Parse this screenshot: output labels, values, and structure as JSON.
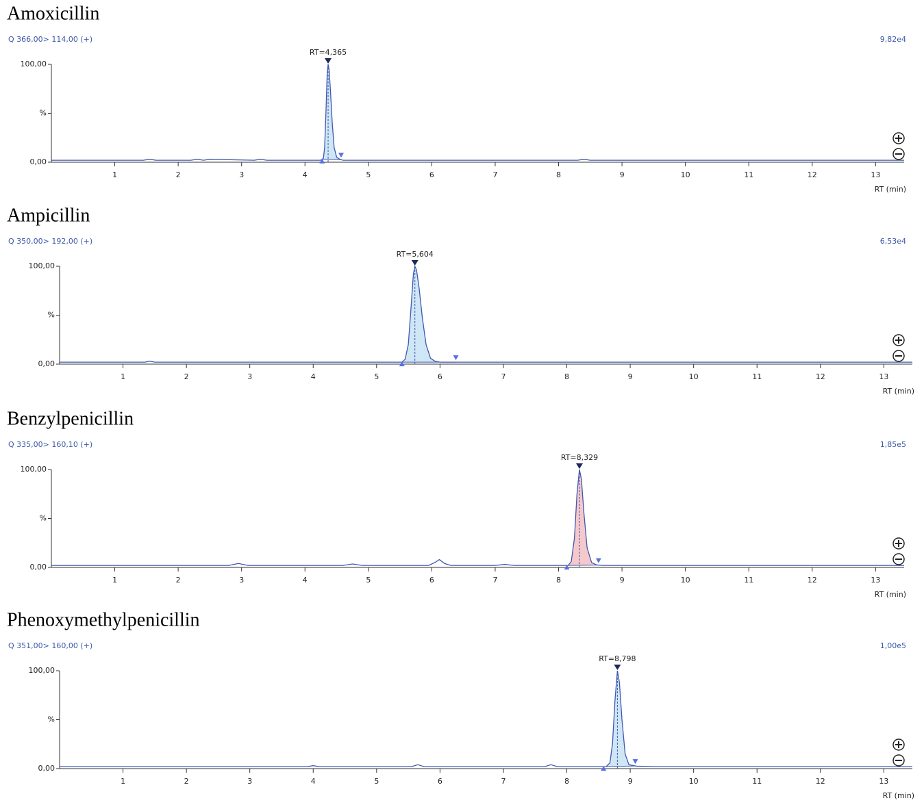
{
  "chart_data": [
    {
      "type": "line",
      "title": "Amoxicillin",
      "subtitle": "Q 366,00> 114,00 (+)",
      "scale_label": "9,82e4",
      "x": [
        0,
        1.45,
        1.55,
        1.65,
        2.2,
        2.3,
        2.4,
        2.5,
        3.2,
        3.3,
        3.4,
        4.25,
        4.29,
        4.31,
        4.33,
        4.35,
        4.365,
        4.38,
        4.4,
        4.43,
        4.46,
        4.5,
        4.55,
        4.6,
        8.3,
        8.4,
        8.5,
        13.45
      ],
      "values": [
        2,
        2,
        3,
        2,
        2,
        3,
        2,
        3,
        2,
        3,
        2,
        2,
        4,
        15,
        50,
        90,
        100,
        95,
        75,
        40,
        15,
        5,
        3,
        2,
        2,
        3,
        2,
        2
      ],
      "color": "#3f57b0",
      "fill_color": "#cfe6f5",
      "peak": {
        "x": 4.365,
        "label": "RT=4,365"
      },
      "integration": [
        4.27,
        4.57
      ],
      "xlim": [
        0,
        13.45
      ],
      "xticks": [
        1,
        2,
        3,
        4,
        5,
        6,
        7,
        8,
        9,
        10,
        11,
        12,
        13
      ],
      "xlabel": "RT (min)",
      "ylim": [
        0,
        100
      ],
      "yticks": [
        {
          "value": 0,
          "label": "0,00"
        },
        {
          "value": 50,
          "label": "%"
        },
        {
          "value": 100,
          "label": "100,00"
        }
      ]
    },
    {
      "type": "line",
      "title": "Ampicillin",
      "subtitle": "Q 350,00> 192,00 (+)",
      "scale_label": "6,53e4",
      "x": [
        0,
        1.35,
        1.42,
        1.5,
        5.4,
        5.45,
        5.5,
        5.54,
        5.58,
        5.604,
        5.63,
        5.67,
        5.72,
        5.78,
        5.85,
        5.92,
        6.0,
        13.45
      ],
      "values": [
        2,
        2,
        3,
        2,
        2,
        5,
        20,
        55,
        92,
        100,
        96,
        78,
        48,
        20,
        6,
        3,
        2,
        2
      ],
      "color": "#3f57b0",
      "fill_color": "#cfe6f5",
      "peak": {
        "x": 5.604,
        "label": "RT=5,604"
      },
      "integration": [
        5.4,
        6.25
      ],
      "xlim": [
        0,
        13.45
      ],
      "xticks": [
        1,
        2,
        3,
        4,
        5,
        6,
        7,
        8,
        9,
        10,
        11,
        12,
        13
      ],
      "xlabel": "RT (min)",
      "ylim": [
        0,
        100
      ],
      "yticks": [
        {
          "value": 0,
          "label": "0,00"
        },
        {
          "value": 50,
          "label": "%"
        },
        {
          "value": 100,
          "label": "100,00"
        }
      ]
    },
    {
      "type": "line",
      "title": "Benzylpenicillin",
      "subtitle": "Q 335,00> 160,10 (+)",
      "scale_label": "1,85e5",
      "x": [
        0,
        2.8,
        2.95,
        3.1,
        4.6,
        4.75,
        4.9,
        5.95,
        6.05,
        6.12,
        6.2,
        6.3,
        7.0,
        7.15,
        7.3,
        8.15,
        8.2,
        8.25,
        8.29,
        8.329,
        8.36,
        8.4,
        8.45,
        8.52,
        8.6,
        8.7,
        13.45
      ],
      "values": [
        2,
        2,
        4,
        2,
        2,
        3.5,
        2,
        2,
        5,
        8,
        4,
        2,
        2,
        3,
        2,
        2,
        6,
        30,
        75,
        100,
        90,
        55,
        20,
        5,
        2.5,
        2,
        2
      ],
      "color": "#3f57b0",
      "fill_color": "#f5c9cb",
      "peak": {
        "x": 8.329,
        "label": "RT=8,329"
      },
      "integration": [
        8.13,
        8.63
      ],
      "xlim": [
        0,
        13.45
      ],
      "xticks": [
        1,
        2,
        3,
        4,
        5,
        6,
        7,
        8,
        9,
        10,
        11,
        12,
        13
      ],
      "xlabel": "RT (min)",
      "ylim": [
        0,
        100
      ],
      "yticks": [
        {
          "value": 0,
          "label": "0,00"
        },
        {
          "value": 50,
          "label": "%"
        },
        {
          "value": 100,
          "label": "100,00"
        }
      ]
    },
    {
      "type": "line",
      "title": "Phenoxymethylpenicillin",
      "subtitle": "Q 351,00> 160,00 (+)",
      "scale_label": "1,00e5",
      "x": [
        0,
        3.9,
        4.0,
        4.1,
        5.55,
        5.65,
        5.75,
        7.65,
        7.75,
        7.85,
        8.62,
        8.68,
        8.72,
        8.76,
        8.798,
        8.83,
        8.87,
        8.92,
        8.98,
        9.1,
        9.4,
        13.45
      ],
      "values": [
        2,
        2,
        3,
        2,
        2,
        4,
        2,
        2,
        4,
        2,
        2,
        6,
        25,
        70,
        100,
        88,
        50,
        15,
        4,
        2.5,
        2,
        2
      ],
      "color": "#3f57b0",
      "fill_color": "#cfe6f5",
      "peak": {
        "x": 8.798,
        "label": "RT=8,798"
      },
      "integration": [
        8.58,
        9.08
      ],
      "xlim": [
        0,
        13.45
      ],
      "xticks": [
        1,
        2,
        3,
        4,
        5,
        6,
        7,
        8,
        9,
        10,
        11,
        12,
        13
      ],
      "xlabel": "RT (min)",
      "ylim": [
        0,
        100
      ],
      "yticks": [
        {
          "value": 0,
          "label": "0,00"
        },
        {
          "value": 50,
          "label": "%"
        },
        {
          "value": 100,
          "label": "100,00"
        }
      ]
    }
  ]
}
